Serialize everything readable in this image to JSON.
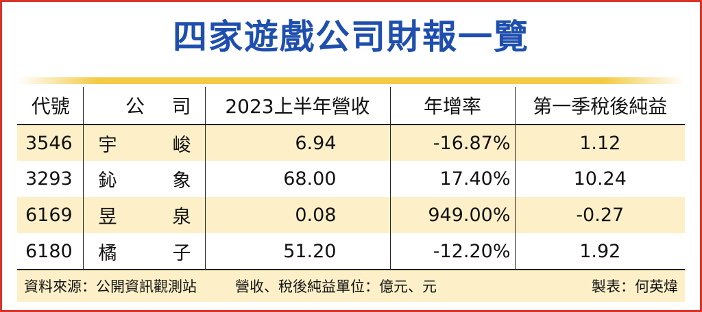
{
  "title": "四家遊戲公司財報一覽",
  "colors": {
    "title": "#1f4fae",
    "border": "#d9342b",
    "highlight": "#fdf0c8",
    "rule": "#f3cb47"
  },
  "table": {
    "headers": {
      "code": "代號",
      "name_1": "公",
      "name_2": "司",
      "revenue": "2023上半年營收",
      "yoy": "年增率",
      "net_income": "第一季稅後純益"
    },
    "rows": [
      {
        "code": "3546",
        "name_1": "宇",
        "name_2": "峻",
        "revenue": "6.94",
        "yoy": "-16.87%",
        "net_income": "1.12"
      },
      {
        "code": "3293",
        "name_1": "鈊",
        "name_2": "象",
        "revenue": "68.00",
        "yoy": "17.40%",
        "net_income": "10.24"
      },
      {
        "code": "6169",
        "name_1": "昱",
        "name_2": "泉",
        "revenue": "0.08",
        "yoy": "949.00%",
        "net_income": "-0.27"
      },
      {
        "code": "6180",
        "name_1": "橘",
        "name_2": "子",
        "revenue": "51.20",
        "yoy": "-12.20%",
        "net_income": "1.92"
      }
    ]
  },
  "footer": {
    "source": "資料來源：公開資訊觀測站",
    "units": "營收、稅後純益單位：億元、元",
    "maker": "製表：何英煒"
  }
}
